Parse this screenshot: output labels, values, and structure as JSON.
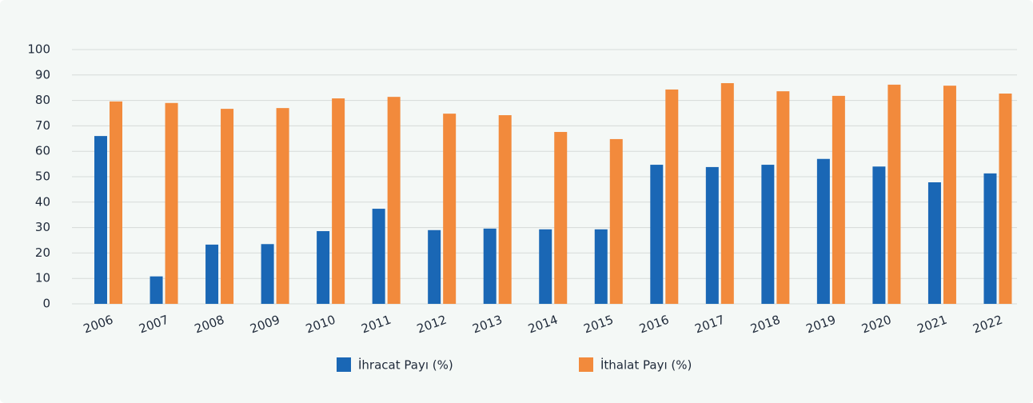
{
  "chart_data": {
    "type": "bar",
    "categories": [
      "2006",
      "2007",
      "2008",
      "2009",
      "2010",
      "2011",
      "2012",
      "2013",
      "2014",
      "2015",
      "2016",
      "2017",
      "2018",
      "2019",
      "2020",
      "2021",
      "2022"
    ],
    "series": [
      {
        "name": "İhracat Payı (%)",
        "color": "#1a67b5",
        "values": [
          66,
          10.8,
          23.3,
          23.5,
          28.6,
          37.4,
          29,
          29.6,
          29.3,
          29.3,
          54.7,
          53.8,
          54.7,
          57,
          54,
          47.8,
          51.3
        ]
      },
      {
        "name": "İthalat Payı (%)",
        "color": "#f28a3c",
        "values": [
          79.6,
          79,
          76.7,
          77,
          80.8,
          81.4,
          74.8,
          74.2,
          67.6,
          64.8,
          84.3,
          86.8,
          83.6,
          81.8,
          86.2,
          85.8,
          82.7
        ]
      }
    ],
    "ylim": [
      0,
      100
    ],
    "yticks": [
      0,
      10,
      20,
      30,
      40,
      50,
      60,
      70,
      80,
      90,
      100
    ],
    "grid": true,
    "legend": "bottom"
  }
}
